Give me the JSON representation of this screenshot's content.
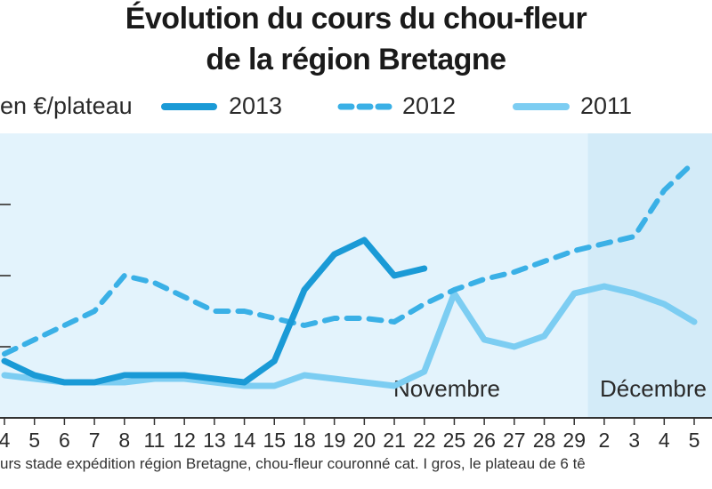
{
  "header": {
    "title_line1": "Évolution du cours du chou-fleur",
    "title_line2": "de la région Bretagne"
  },
  "colors": {
    "s2013": "#1a9ad6",
    "s2012": "#3ab0e6",
    "s2011": "#7ccdf2",
    "bg_nov": "#e3f3fc",
    "bg_dec": "#d3ebf8"
  },
  "chart_data": {
    "type": "line",
    "ylabel": "en €/plateau",
    "months": [
      "Novembre",
      "Décembre"
    ],
    "x": [
      "4",
      "5",
      "6",
      "7",
      "8",
      "11",
      "12",
      "13",
      "14",
      "15",
      "18",
      "19",
      "20",
      "21",
      "22",
      "25",
      "26",
      "27",
      "28",
      "29",
      "2",
      "3",
      "4",
      "5"
    ],
    "series": [
      {
        "name": "2013",
        "values": [
          1.8,
          1.6,
          1.5,
          1.5,
          1.6,
          1.6,
          1.6,
          1.55,
          1.5,
          1.8,
          2.8,
          3.3,
          3.5,
          3.0,
          3.1,
          null,
          null,
          null,
          null,
          null,
          null,
          null,
          null,
          null
        ]
      },
      {
        "name": "2012",
        "values": [
          1.9,
          2.1,
          2.3,
          2.5,
          3.0,
          2.9,
          2.7,
          2.5,
          2.5,
          2.4,
          2.3,
          2.4,
          2.4,
          2.35,
          2.6,
          2.8,
          2.95,
          3.05,
          3.2,
          3.35,
          3.45,
          3.55,
          4.2,
          4.6
        ]
      },
      {
        "name": "2011",
        "values": [
          1.6,
          1.55,
          1.5,
          1.5,
          1.5,
          1.55,
          1.55,
          1.5,
          1.45,
          1.45,
          1.6,
          1.55,
          1.5,
          1.45,
          1.65,
          2.75,
          2.1,
          2.0,
          2.15,
          2.75,
          2.85,
          2.75,
          2.6,
          2.35
        ]
      }
    ],
    "ylim": [
      1.0,
      5.0
    ],
    "grid": false,
    "legend_position": "top"
  },
  "footer": {
    "source": "urs stade expédition région Bretagne, chou-fleur couronné cat. I gros, le plateau de 6 tê"
  }
}
